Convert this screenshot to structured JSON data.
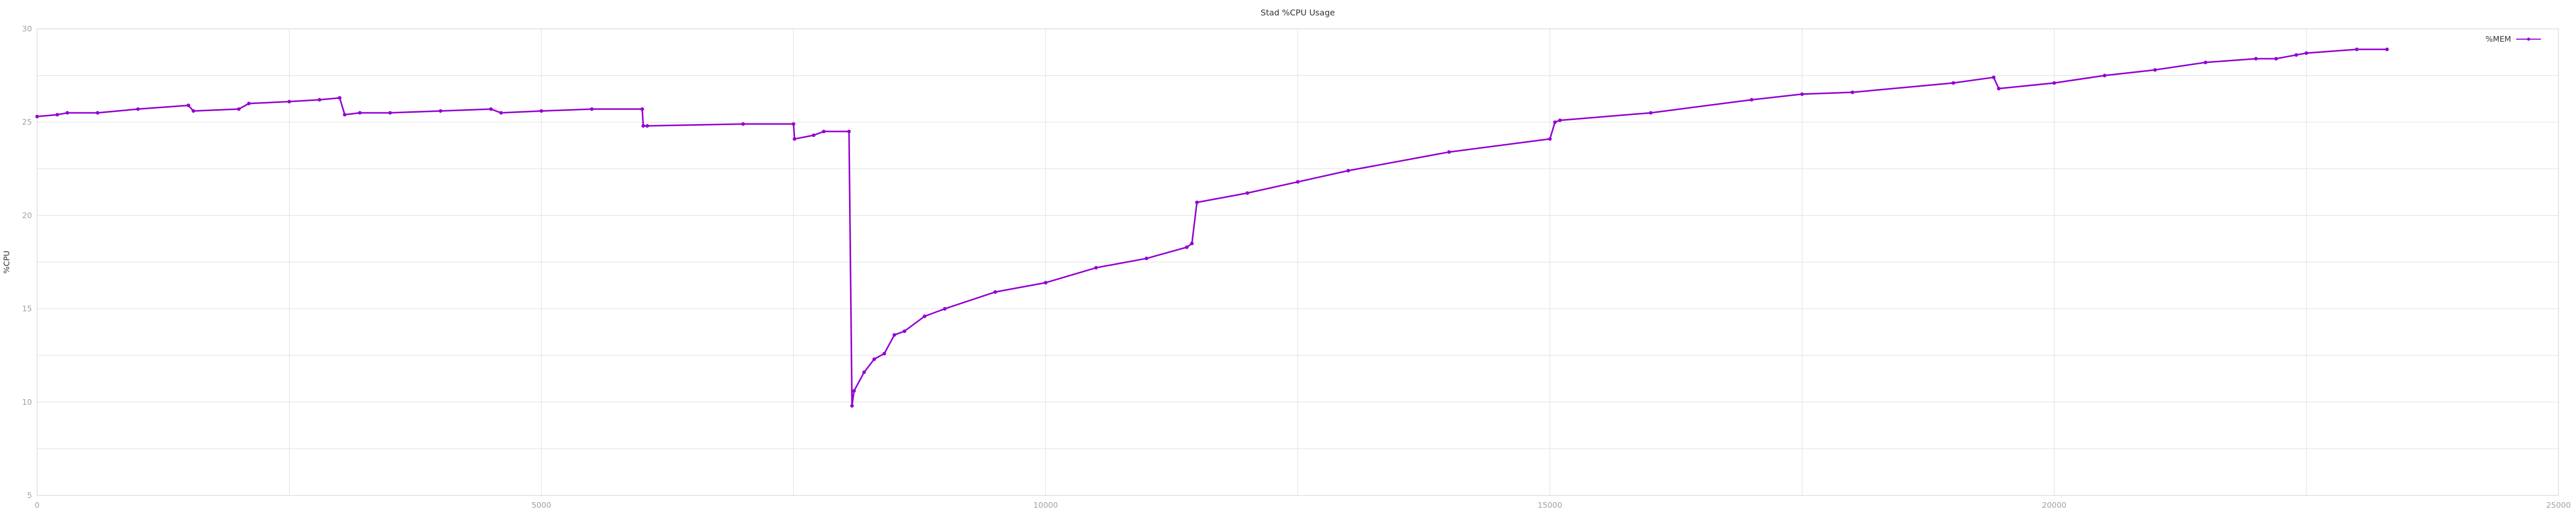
{
  "chart_data": {
    "type": "line",
    "title": "Stad %CPU Usage",
    "xlabel": "",
    "ylabel": "%CPU",
    "xlim": [
      0,
      25000
    ],
    "ylim": [
      5,
      30
    ],
    "x_ticks": [
      0,
      5000,
      10000,
      15000,
      20000,
      25000
    ],
    "x_tick_labels": [
      "0",
      "5000",
      "10000",
      "15000",
      "20000",
      "25000"
    ],
    "y_ticks": [
      5,
      10,
      15,
      20,
      25,
      30
    ],
    "y_tick_labels": [
      "5",
      "10",
      "15",
      "20",
      "25",
      "30"
    ],
    "grid": true,
    "legend": {
      "position": "top-right",
      "entries": [
        "%MEM"
      ]
    },
    "series": [
      {
        "name": "%MEM",
        "color": "#9400d3",
        "marker": "point",
        "x": [
          0,
          200,
          300,
          600,
          1000,
          1500,
          1550,
          2000,
          2100,
          2500,
          2800,
          3000,
          3050,
          3200,
          3500,
          4000,
          4500,
          4600,
          5000,
          5500,
          6000,
          6010,
          6050,
          7000,
          7500,
          7510,
          7700,
          7800,
          8050,
          8080,
          8100,
          8200,
          8300,
          8400,
          8500,
          8600,
          8800,
          9000,
          9500,
          10000,
          10500,
          11000,
          11400,
          11450,
          11500,
          12000,
          12500,
          13000,
          14000,
          15000,
          15050,
          15100,
          16000,
          17000,
          17500,
          18000,
          19000,
          19400,
          19450,
          20000,
          20500,
          21000,
          21500,
          22000,
          22200,
          22400,
          22500,
          23000,
          23300
        ],
        "y": [
          25.3,
          25.4,
          25.5,
          25.5,
          25.7,
          25.9,
          25.6,
          25.7,
          26.0,
          26.1,
          26.2,
          26.3,
          25.4,
          25.5,
          25.5,
          25.6,
          25.7,
          25.5,
          25.6,
          25.7,
          25.7,
          24.8,
          24.8,
          24.9,
          24.9,
          24.1,
          24.3,
          24.5,
          24.5,
          9.8,
          10.6,
          11.6,
          12.3,
          12.6,
          13.6,
          13.8,
          14.6,
          15.0,
          15.9,
          16.4,
          17.2,
          17.7,
          18.3,
          18.5,
          20.7,
          21.2,
          21.8,
          22.4,
          23.4,
          24.1,
          25.0,
          25.1,
          25.5,
          26.2,
          26.5,
          26.6,
          27.1,
          27.4,
          26.8,
          27.1,
          27.5,
          27.8,
          28.2,
          28.4,
          28.4,
          28.6,
          28.7,
          28.9,
          28.9
        ]
      }
    ]
  }
}
